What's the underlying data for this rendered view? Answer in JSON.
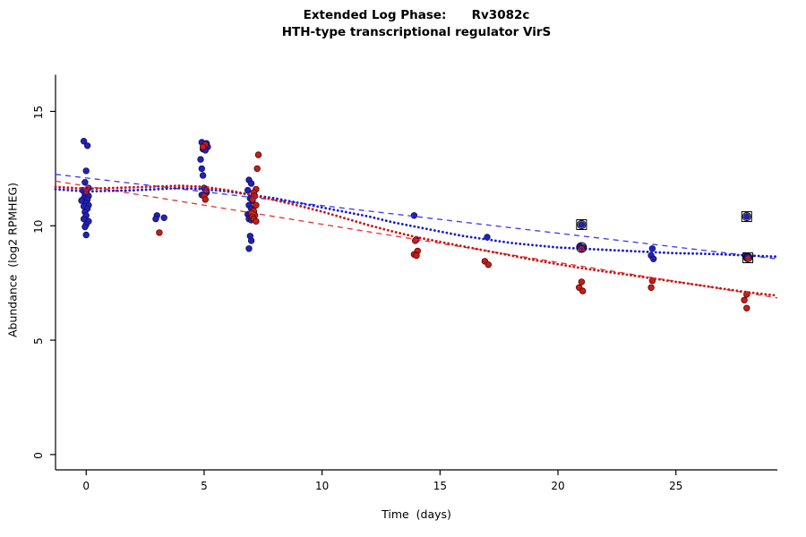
{
  "page": {
    "background": "#ffffff"
  },
  "chart_data": {
    "type": "scatter",
    "title": "Extended Log Phase:      Rv3082c",
    "subtitle": "HTH-type transcriptional regulator VirS",
    "xlabel": "Time  (days)",
    "ylabel": "Abundance  (log2 RPMHEG)",
    "xlim": [
      -1.3,
      29.3
    ],
    "ylim": [
      -0.67,
      17.6
    ],
    "xticks": [
      0,
      5,
      10,
      15,
      20,
      25
    ],
    "yticks": [
      0,
      5,
      10,
      15
    ],
    "grid": false,
    "legend": "none",
    "series": [
      {
        "name": "blue-replicate-points",
        "color": "#2222b8",
        "edge": "#101060",
        "points": [
          [
            -0.1,
            13.7
          ],
          [
            0.05,
            13.5
          ],
          [
            0,
            12.4
          ],
          [
            -0.05,
            11.9
          ],
          [
            0.1,
            11.65
          ],
          [
            -0.15,
            11.55
          ],
          [
            0,
            11.45
          ],
          [
            -0.05,
            11.35
          ],
          [
            0.1,
            11.3
          ],
          [
            -0.1,
            11.2
          ],
          [
            0.05,
            11.15
          ],
          [
            -0.2,
            11.1
          ],
          [
            0,
            11.0
          ],
          [
            0.1,
            10.9
          ],
          [
            -0.1,
            10.85
          ],
          [
            0.05,
            10.75
          ],
          [
            -0.05,
            10.6
          ],
          [
            0,
            10.45
          ],
          [
            -0.1,
            10.3
          ],
          [
            0.1,
            10.2
          ],
          [
            0,
            10.05
          ],
          [
            -0.05,
            9.95
          ],
          [
            0,
            9.6
          ],
          [
            3.0,
            10.45
          ],
          [
            2.95,
            10.3
          ],
          [
            3.3,
            10.35
          ],
          [
            4.9,
            13.65
          ],
          [
            5.1,
            13.6
          ],
          [
            5.0,
            13.5
          ],
          [
            5.15,
            13.45
          ],
          [
            4.95,
            13.35
          ],
          [
            5.05,
            13.3
          ],
          [
            4.85,
            12.9
          ],
          [
            4.9,
            12.5
          ],
          [
            4.95,
            12.2
          ],
          [
            5.0,
            11.65
          ],
          [
            5.1,
            11.45
          ],
          [
            4.9,
            11.35
          ],
          [
            6.9,
            12.0
          ],
          [
            7.0,
            11.85
          ],
          [
            6.85,
            11.55
          ],
          [
            7.1,
            11.35
          ],
          [
            6.95,
            11.2
          ],
          [
            7.05,
            11.1
          ],
          [
            6.9,
            10.9
          ],
          [
            7.0,
            10.75
          ],
          [
            7.1,
            10.6
          ],
          [
            6.85,
            10.5
          ],
          [
            6.95,
            10.45
          ],
          [
            7.05,
            10.35
          ],
          [
            6.9,
            10.3
          ],
          [
            7.0,
            10.25
          ],
          [
            6.95,
            9.55
          ],
          [
            7.0,
            9.35
          ],
          [
            6.9,
            9.0
          ],
          [
            13.9,
            10.45
          ],
          [
            14.0,
            9.4
          ],
          [
            17.0,
            9.5
          ],
          [
            21.0,
            10.05
          ],
          [
            20.95,
            9.1
          ],
          [
            21.05,
            9.05
          ],
          [
            24.0,
            9.0
          ],
          [
            23.95,
            8.7
          ],
          [
            24.05,
            8.55
          ],
          [
            28.0,
            10.4
          ],
          [
            27.95,
            8.7
          ],
          [
            28.1,
            8.65
          ],
          [
            28.0,
            8.6
          ]
        ]
      },
      {
        "name": "red-replicate-points",
        "color": "#c22018",
        "edge": "#600000",
        "points": [
          [
            0,
            11.5
          ],
          [
            3.1,
            9.7
          ],
          [
            5.05,
            13.55
          ],
          [
            4.95,
            13.45
          ],
          [
            5.1,
            11.55
          ],
          [
            5.0,
            11.3
          ],
          [
            5.05,
            11.15
          ],
          [
            7.3,
            13.1
          ],
          [
            7.25,
            12.5
          ],
          [
            7.2,
            11.6
          ],
          [
            7.1,
            11.45
          ],
          [
            7.15,
            11.3
          ],
          [
            7.05,
            11.15
          ],
          [
            7.2,
            10.9
          ],
          [
            7.1,
            10.65
          ],
          [
            7.0,
            10.55
          ],
          [
            7.15,
            10.45
          ],
          [
            7.05,
            10.4
          ],
          [
            7.1,
            10.3
          ],
          [
            7.2,
            10.2
          ],
          [
            13.95,
            9.35
          ],
          [
            14.05,
            8.9
          ],
          [
            13.9,
            8.75
          ],
          [
            14.0,
            8.7
          ],
          [
            16.9,
            8.45
          ],
          [
            17.05,
            8.3
          ],
          [
            21.0,
            9.0
          ],
          [
            21.0,
            7.55
          ],
          [
            20.9,
            7.3
          ],
          [
            21.05,
            7.15
          ],
          [
            24.0,
            7.6
          ],
          [
            23.95,
            7.3
          ],
          [
            28.05,
            8.6
          ],
          [
            28.0,
            7.0
          ],
          [
            27.9,
            6.75
          ],
          [
            28.0,
            6.4
          ]
        ]
      }
    ],
    "lines": [
      {
        "name": "blue-linear-fit-dashed",
        "style": "dashed",
        "color": "#3a3af0",
        "width": 1.3,
        "points": [
          [
            -1.3,
            12.25
          ],
          [
            29.3,
            8.55
          ]
        ]
      },
      {
        "name": "red-linear-fit-dashed",
        "style": "dashed",
        "color": "#e83030",
        "width": 1.3,
        "points": [
          [
            -1.3,
            11.95
          ],
          [
            29.3,
            6.85
          ]
        ]
      },
      {
        "name": "blue-smooth-fit-dotted",
        "style": "dotted",
        "color": "#1c1ccc",
        "width": 2.8,
        "points": [
          [
            -1.3,
            11.6
          ],
          [
            0,
            11.5
          ],
          [
            2,
            11.55
          ],
          [
            4,
            11.65
          ],
          [
            5,
            11.6
          ],
          [
            6,
            11.5
          ],
          [
            7,
            11.35
          ],
          [
            8,
            11.2
          ],
          [
            9,
            11.0
          ],
          [
            10,
            10.8
          ],
          [
            11,
            10.6
          ],
          [
            12,
            10.4
          ],
          [
            13,
            10.15
          ],
          [
            14,
            9.95
          ],
          [
            15,
            9.75
          ],
          [
            16,
            9.55
          ],
          [
            17,
            9.4
          ],
          [
            18,
            9.25
          ],
          [
            19,
            9.15
          ],
          [
            20,
            9.05
          ],
          [
            21,
            9.0
          ],
          [
            22,
            8.95
          ],
          [
            23,
            8.9
          ],
          [
            24,
            8.85
          ],
          [
            25,
            8.8
          ],
          [
            26,
            8.78
          ],
          [
            27,
            8.75
          ],
          [
            28,
            8.7
          ],
          [
            29.3,
            8.65
          ]
        ]
      },
      {
        "name": "red-smooth-fit-dotted",
        "style": "dotted",
        "color": "#cc1414",
        "width": 2.8,
        "points": [
          [
            -1.3,
            11.7
          ],
          [
            0,
            11.62
          ],
          [
            2,
            11.68
          ],
          [
            4,
            11.75
          ],
          [
            5,
            11.7
          ],
          [
            6,
            11.55
          ],
          [
            7,
            11.35
          ],
          [
            8,
            11.12
          ],
          [
            9,
            10.88
          ],
          [
            10,
            10.62
          ],
          [
            11,
            10.32
          ],
          [
            12,
            10.02
          ],
          [
            13,
            9.75
          ],
          [
            14,
            9.5
          ],
          [
            15,
            9.3
          ],
          [
            16,
            9.1
          ],
          [
            17,
            8.9
          ],
          [
            18,
            8.7
          ],
          [
            19,
            8.5
          ],
          [
            20,
            8.32
          ],
          [
            21,
            8.15
          ],
          [
            22,
            8.0
          ],
          [
            23,
            7.85
          ],
          [
            24,
            7.7
          ],
          [
            25,
            7.55
          ],
          [
            26,
            7.4
          ],
          [
            27,
            7.25
          ],
          [
            28,
            7.1
          ],
          [
            29.3,
            6.95
          ]
        ]
      }
    ],
    "flagged_points": [
      {
        "x": 21,
        "y": 10.05,
        "shape": "square-circle"
      },
      {
        "x": 28,
        "y": 10.4,
        "shape": "square-circle"
      },
      {
        "x": 28.05,
        "y": 8.6,
        "shape": "square-circle"
      },
      {
        "x": 21,
        "y": 9.05,
        "shape": "circle"
      }
    ]
  }
}
